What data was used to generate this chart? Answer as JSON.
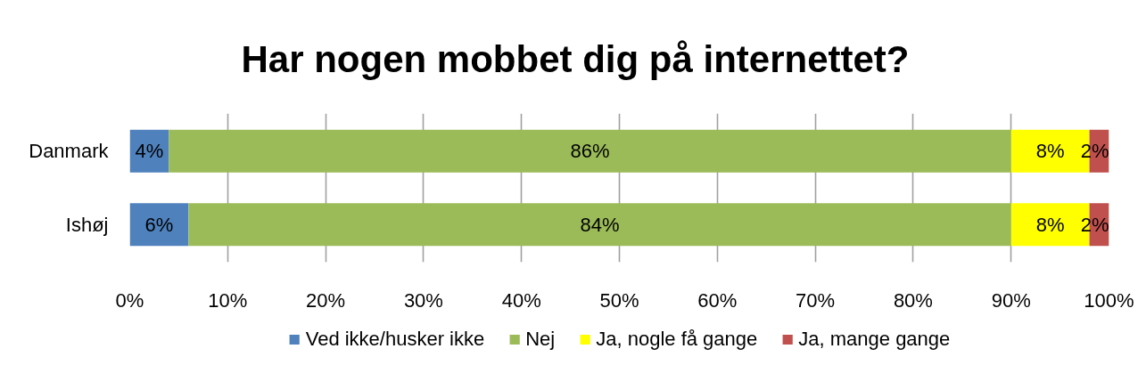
{
  "chart_data": {
    "type": "bar",
    "orientation": "horizontal",
    "stacked": true,
    "title": "Har nogen mobbet dig på internettet?",
    "categories": [
      "Danmark",
      "Ishøj"
    ],
    "series": [
      {
        "name": "Ved ikke/husker ikke",
        "color": "#4f81bd",
        "values": [
          4,
          6
        ],
        "value_labels": [
          "4%",
          "6%"
        ]
      },
      {
        "name": "Nej",
        "color": "#9bbb59",
        "values": [
          86,
          84
        ],
        "value_labels": [
          "86%",
          "84%"
        ]
      },
      {
        "name": "Ja, nogle få gange",
        "color": "#ffff00",
        "values": [
          8,
          8
        ],
        "value_labels": [
          "8%",
          "8%"
        ]
      },
      {
        "name": "Ja, mange gange",
        "color": "#c0504d",
        "values": [
          2,
          2
        ],
        "value_labels": [
          "2%",
          "2%"
        ]
      }
    ],
    "xlim": [
      0,
      100
    ],
    "xticks": [
      {
        "value": 0,
        "label": "0%"
      },
      {
        "value": 10,
        "label": "10%"
      },
      {
        "value": 20,
        "label": "20%"
      },
      {
        "value": 30,
        "label": "30%"
      },
      {
        "value": 40,
        "label": "40%"
      },
      {
        "value": 50,
        "label": "50%"
      },
      {
        "value": 60,
        "label": "60%"
      },
      {
        "value": 70,
        "label": "70%"
      },
      {
        "value": 80,
        "label": "80%"
      },
      {
        "value": 90,
        "label": "90%"
      },
      {
        "value": 100,
        "label": "100%"
      }
    ],
    "grid": "x",
    "legend": "bottom"
  }
}
